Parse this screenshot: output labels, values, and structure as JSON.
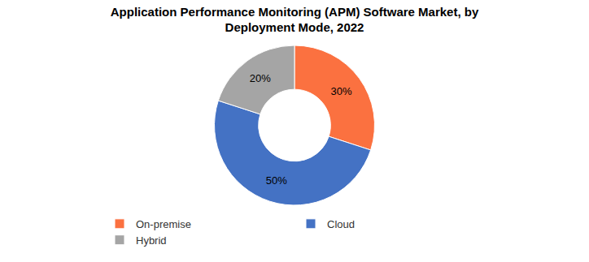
{
  "chart_data": {
    "type": "pie",
    "title": "Application Performance Monitoring (APM) Software Market, by Deployment Mode, 2022",
    "categories": [
      "On-premise",
      "Cloud",
      "Hybrid"
    ],
    "values": [
      30,
      50,
      20
    ],
    "value_labels": [
      "30%",
      "50%",
      "20%"
    ],
    "colors": [
      "#fb7140",
      "#4472c4",
      "#a5a5a5"
    ],
    "data_labels": true,
    "legend": "bottom"
  }
}
